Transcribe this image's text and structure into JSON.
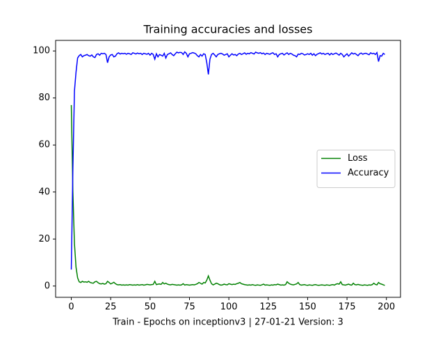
{
  "chart_data": {
    "type": "line",
    "title": "Training accuracies and losses",
    "x_label": "Train - Epochs on inceptionv3 | 27-01-21 Version: 3",
    "x": [
      0,
      1,
      2,
      3,
      4,
      5,
      6,
      7,
      8,
      9,
      10,
      11,
      12,
      13,
      14,
      15,
      16,
      17,
      18,
      19,
      20,
      21,
      22,
      23,
      24,
      25,
      26,
      27,
      28,
      29,
      30,
      31,
      32,
      33,
      34,
      35,
      36,
      37,
      38,
      39,
      40,
      41,
      42,
      43,
      44,
      45,
      46,
      47,
      48,
      49,
      50,
      51,
      52,
      53,
      54,
      55,
      56,
      57,
      58,
      59,
      60,
      61,
      62,
      63,
      64,
      65,
      66,
      67,
      68,
      69,
      70,
      71,
      72,
      73,
      74,
      75,
      76,
      77,
      78,
      79,
      80,
      81,
      82,
      83,
      84,
      85,
      86,
      87,
      88,
      89,
      90,
      91,
      92,
      93,
      94,
      95,
      96,
      97,
      98,
      99,
      100,
      101,
      102,
      103,
      104,
      105,
      106,
      107,
      108,
      109,
      110,
      111,
      112,
      113,
      114,
      115,
      116,
      117,
      118,
      119,
      120,
      121,
      122,
      123,
      124,
      125,
      126,
      127,
      128,
      129,
      130,
      131,
      132,
      133,
      134,
      135,
      136,
      137,
      138,
      139,
      140,
      141,
      142,
      143,
      144,
      145,
      146,
      147,
      148,
      149,
      150,
      151,
      152,
      153,
      154,
      155,
      156,
      157,
      158,
      159,
      160,
      161,
      162,
      163,
      164,
      165,
      166,
      167,
      168,
      169,
      170,
      171,
      172,
      173,
      174,
      175,
      176,
      177,
      178,
      179,
      180,
      181,
      182,
      183,
      184,
      185,
      186,
      187,
      188,
      189,
      190,
      191,
      192,
      193,
      194,
      195,
      196,
      197,
      198,
      199
    ],
    "series": [
      {
        "name": "Loss",
        "color": "#008000",
        "values": [
          77,
          40,
          18,
          8,
          3.5,
          1.8,
          1.5,
          2,
          1.7,
          1.8,
          1.6,
          2,
          1.5,
          1.3,
          1.2,
          1.8,
          2,
          1.4,
          1,
          0.9,
          1.1,
          0.8,
          1,
          2,
          1.5,
          0.9,
          1.2,
          1.6,
          1,
          0.6,
          0.5,
          0.6,
          0.4,
          0.5,
          0.4,
          0.5,
          0.4,
          0.6,
          0.5,
          0.4,
          0.5,
          0.4,
          0.6,
          0.4,
          0.5,
          0.6,
          0.4,
          0.5,
          0.7,
          0.6,
          0.5,
          0.6,
          0.7,
          2,
          0.6,
          0.8,
          0.9,
          0.7,
          1.5,
          0.9,
          1.2,
          0.8,
          0.6,
          0.5,
          0.7,
          0.6,
          0.5,
          0.4,
          0.5,
          0.4,
          0.5,
          1,
          0.4,
          0.6,
          0.5,
          0.4,
          0.5,
          0.6,
          0.5,
          0.7,
          1,
          1.5,
          1.2,
          0.8,
          1.5,
          1.3,
          2.5,
          4.3,
          2.5,
          1,
          0.5,
          0.8,
          1.2,
          1,
          0.6,
          0.4,
          0.5,
          0.8,
          0.6,
          0.5,
          1,
          0.8,
          0.6,
          0.8,
          0.7,
          1,
          1.2,
          1.5,
          1,
          0.8,
          0.6,
          0.5,
          0.4,
          0.5,
          0.4,
          0.6,
          0.4,
          0.3,
          0.5,
          0.4,
          0.3,
          0.5,
          0.8,
          0.4,
          0.5,
          0.4,
          0.3,
          0.5,
          0.4,
          0.6,
          0.5,
          0.8,
          0.6,
          0.4,
          0.5,
          0.4,
          0.6,
          1.8,
          1.2,
          0.8,
          0.6,
          0.5,
          0.7,
          0.9,
          1.5,
          0.6,
          0.4,
          0.5,
          0.6,
          0.4,
          0.3,
          0.5,
          0.4,
          0.3,
          0.5,
          0.6,
          0.4,
          0.3,
          0.4,
          0.5,
          0.4,
          0.3,
          0.5,
          0.4,
          0.3,
          0.5,
          0.6,
          0.4,
          0.8,
          1,
          0.8,
          1.8,
          0.6,
          0.5,
          0.4,
          0.6,
          0.8,
          0.5,
          0.4,
          1.2,
          0.6,
          0.5,
          0.7,
          0.5,
          0.4,
          0.3,
          0.5,
          0.4,
          0.3,
          0.5,
          0.4,
          0.6,
          1.2,
          0.7,
          0.5,
          1.5,
          1,
          0.8,
          0.5,
          0.3
        ]
      },
      {
        "name": "Accuracy",
        "color": "#0000ff",
        "values": [
          7,
          50,
          83,
          91,
          97,
          98,
          98.5,
          97.5,
          98,
          98.2,
          98.5,
          98,
          97.8,
          98.3,
          97.5,
          97.2,
          98.5,
          98.8,
          98.2,
          99,
          98.8,
          99,
          98.5,
          95,
          97.5,
          98.3,
          98.5,
          97.5,
          97.8,
          98.8,
          99.2,
          98.7,
          99,
          98.8,
          99,
          98.6,
          99,
          98.8,
          98.5,
          99.2,
          99,
          98.7,
          99.1,
          98.8,
          99,
          98.5,
          99,
          98.8,
          98.6,
          99,
          98.2,
          99,
          98.5,
          96.5,
          98.8,
          97.5,
          98.5,
          98.2,
          97.8,
          99,
          97,
          98.5,
          98.8,
          99.2,
          98.5,
          98,
          98.8,
          99.5,
          99.2,
          99.4,
          99.3,
          98.5,
          99.6,
          99,
          97.5,
          98.8,
          99,
          99.3,
          99.1,
          98.8,
          98,
          97.5,
          98.5,
          97.8,
          98.8,
          98.5,
          95,
          90,
          96.5,
          98.5,
          99,
          98.3,
          97.5,
          98.5,
          98.8,
          99,
          98.7,
          98.2,
          98.5,
          98.8,
          97.5,
          98.2,
          98.8,
          98.3,
          98.5,
          98,
          98.7,
          99,
          98.5,
          98.8,
          99.2,
          98.6,
          99,
          98.8,
          99.3,
          99,
          98.7,
          99.5,
          99.2,
          99,
          99.3,
          98.8,
          99.1,
          98.5,
          99,
          98.8,
          98.6,
          99,
          99.2,
          98.5,
          98.8,
          97.5,
          98.5,
          98.8,
          99,
          98.3,
          98.8,
          99.2,
          98.5,
          99,
          98.7,
          98.2,
          98,
          97.5,
          98.7,
          98.5,
          99,
          98.8,
          98.3,
          98.5,
          98.8,
          98.5,
          99,
          98.2,
          98.8,
          98,
          98.6,
          98.9,
          99.2,
          98.7,
          99,
          98.5,
          98.8,
          99,
          98.3,
          99,
          98.5,
          98.8,
          99.1,
          98.7,
          98.2,
          99,
          98.5,
          97.5,
          98.2,
          98.8,
          97.8,
          98.5,
          99.2,
          98.7,
          99,
          98.5,
          98,
          98.8,
          99.1,
          98.6,
          98.9,
          99,
          98.7,
          98.4,
          99.2,
          98.8,
          99,
          98.5,
          99.3,
          95.5,
          98,
          97.8,
          99,
          98.5
        ]
      }
    ],
    "xlim": [
      -9.95,
      208.95
    ],
    "xticks": [
      0,
      25,
      50,
      75,
      100,
      125,
      150,
      175,
      200
    ],
    "ylim": [
      -4.8,
      104.5
    ],
    "yticks": [
      0,
      20,
      40,
      60,
      80,
      100
    ],
    "legend": "center right"
  }
}
